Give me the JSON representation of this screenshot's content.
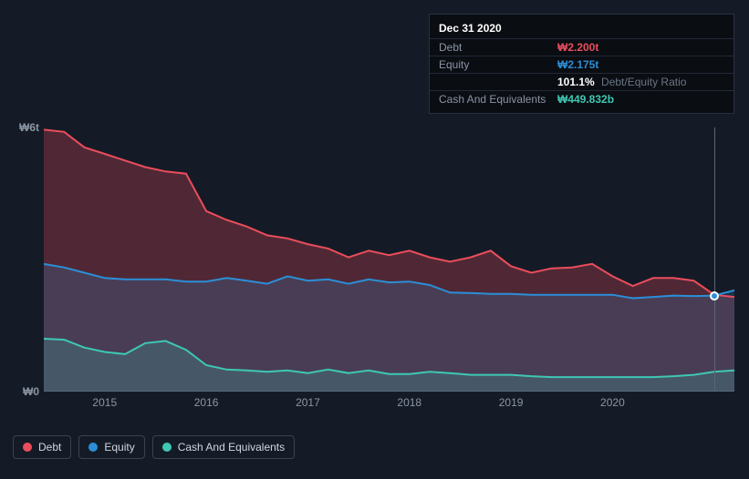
{
  "tooltip": {
    "date": "Dec 31 2020",
    "rows": [
      {
        "label": "Debt",
        "value": "₩2.200t",
        "cls": "v-debt"
      },
      {
        "label": "Equity",
        "value": "₩2.175t",
        "cls": "v-equity"
      },
      {
        "label": "",
        "pct": "101.1%",
        "pct_label": "Debt/Equity Ratio"
      },
      {
        "label": "Cash And Equivalents",
        "value": "₩449.832b",
        "cls": "v-cash"
      }
    ]
  },
  "chart": {
    "type": "area",
    "background_color": "#151b26",
    "grid_color": "#3a424f",
    "y_axis": {
      "min": 0,
      "max": 6,
      "labels": [
        {
          "text": "₩6t",
          "v": 6
        },
        {
          "text": "₩0",
          "v": 0
        }
      ],
      "label_color": "#8a95a5",
      "label_fontsize": 12
    },
    "x_axis": {
      "min": 2014.4,
      "max": 2021.2,
      "ticks": [
        2015,
        2016,
        2017,
        2018,
        2019,
        2020
      ],
      "label_color": "#8a95a5",
      "label_fontsize": 12
    },
    "cursor_x": 2021.0,
    "series": [
      {
        "name": "debt",
        "label": "Debt",
        "line_color": "#eb4d5c",
        "fill_color": "rgba(235,77,92,0.28)",
        "line_width": 2,
        "x": [
          2014.4,
          2014.6,
          2014.8,
          2015.0,
          2015.2,
          2015.4,
          2015.6,
          2015.8,
          2016.0,
          2016.2,
          2016.4,
          2016.6,
          2016.8,
          2017.0,
          2017.2,
          2017.4,
          2017.6,
          2017.8,
          2018.0,
          2018.2,
          2018.4,
          2018.6,
          2018.8,
          2019.0,
          2019.2,
          2019.4,
          2019.6,
          2019.8,
          2020.0,
          2020.2,
          2020.4,
          2020.6,
          2020.8,
          2021.0,
          2021.2
        ],
        "y": [
          5.95,
          5.9,
          5.55,
          5.4,
          5.25,
          5.1,
          5.0,
          4.95,
          4.1,
          3.9,
          3.75,
          3.55,
          3.48,
          3.35,
          3.25,
          3.05,
          3.2,
          3.1,
          3.2,
          3.05,
          2.95,
          3.05,
          3.2,
          2.85,
          2.7,
          2.8,
          2.82,
          2.9,
          2.62,
          2.4,
          2.58,
          2.58,
          2.52,
          2.2,
          2.15
        ]
      },
      {
        "name": "equity",
        "label": "Equity",
        "line_color": "#2b8fd8",
        "fill_color": "rgba(43,143,216,0.20)",
        "line_width": 2,
        "x": [
          2014.4,
          2014.6,
          2014.8,
          2015.0,
          2015.2,
          2015.4,
          2015.6,
          2015.8,
          2016.0,
          2016.2,
          2016.4,
          2016.6,
          2016.8,
          2017.0,
          2017.2,
          2017.4,
          2017.6,
          2017.8,
          2018.0,
          2018.2,
          2018.4,
          2018.6,
          2018.8,
          2019.0,
          2019.2,
          2019.4,
          2019.6,
          2019.8,
          2020.0,
          2020.2,
          2020.4,
          2020.6,
          2020.8,
          2021.0,
          2021.2
        ],
        "y": [
          2.9,
          2.82,
          2.7,
          2.58,
          2.55,
          2.55,
          2.55,
          2.5,
          2.5,
          2.58,
          2.52,
          2.45,
          2.62,
          2.52,
          2.55,
          2.45,
          2.55,
          2.48,
          2.5,
          2.42,
          2.25,
          2.24,
          2.22,
          2.22,
          2.2,
          2.2,
          2.2,
          2.2,
          2.2,
          2.12,
          2.15,
          2.18,
          2.17,
          2.18,
          2.3
        ]
      },
      {
        "name": "cash",
        "label": "Cash And Equivalents",
        "line_color": "#3ec8b4",
        "fill_color": "rgba(62,200,180,0.20)",
        "line_width": 2,
        "x": [
          2014.4,
          2014.6,
          2014.8,
          2015.0,
          2015.2,
          2015.4,
          2015.6,
          2015.8,
          2016.0,
          2016.2,
          2016.4,
          2016.6,
          2016.8,
          2017.0,
          2017.2,
          2017.4,
          2017.6,
          2017.8,
          2018.0,
          2018.2,
          2018.4,
          2018.6,
          2018.8,
          2019.0,
          2019.2,
          2019.4,
          2019.6,
          2019.8,
          2020.0,
          2020.2,
          2020.4,
          2020.6,
          2020.8,
          2021.0,
          2021.2
        ],
        "y": [
          1.2,
          1.18,
          1.0,
          0.9,
          0.85,
          1.1,
          1.15,
          0.95,
          0.6,
          0.5,
          0.48,
          0.45,
          0.48,
          0.42,
          0.5,
          0.42,
          0.48,
          0.4,
          0.4,
          0.45,
          0.42,
          0.38,
          0.38,
          0.38,
          0.35,
          0.33,
          0.33,
          0.33,
          0.33,
          0.33,
          0.33,
          0.35,
          0.38,
          0.45,
          0.48
        ]
      }
    ]
  },
  "legend": {
    "items": [
      {
        "label": "Debt",
        "color": "#eb4d5c",
        "key": "debt"
      },
      {
        "label": "Equity",
        "color": "#2b8fd8",
        "key": "equity"
      },
      {
        "label": "Cash And Equivalents",
        "color": "#3ec8b4",
        "key": "cash"
      }
    ],
    "border_color": "#3a424f",
    "text_color": "#cfd6e0",
    "fontsize": 12
  }
}
